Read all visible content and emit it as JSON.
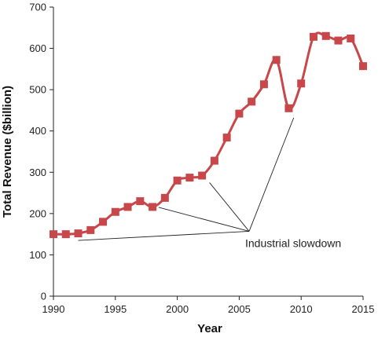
{
  "chart_data": {
    "type": "line",
    "title": "",
    "xlabel": "Year",
    "ylabel": "Total Revenue ($billion)",
    "xlim": [
      1990,
      2015
    ],
    "ylim": [
      0,
      700
    ],
    "x_ticks": [
      "1990",
      "1995",
      "2000",
      "2005",
      "2010",
      "2015"
    ],
    "y_ticks": [
      "0",
      "100",
      "200",
      "300",
      "400",
      "500",
      "600",
      "700"
    ],
    "grid": false,
    "series": [
      {
        "color": "#c8474a",
        "marker": "square",
        "x": [
          1990,
          1991,
          1992,
          1993,
          1994,
          1995,
          1996,
          1997,
          1998,
          1999,
          2000,
          2001,
          2002,
          2003,
          2004,
          2005,
          2006,
          2007,
          2008,
          2009,
          2010,
          2011,
          2012,
          2013,
          2014,
          2015
        ],
        "y": [
          150,
          150,
          152,
          160,
          180,
          204,
          216,
          230,
          216,
          238,
          280,
          287,
          292,
          328,
          384,
          442,
          471,
          513,
          572,
          455,
          515,
          628,
          630,
          619,
          624,
          557
        ]
      }
    ],
    "annotations": [
      {
        "text": "Industrial slowdown",
        "anchor": [
          2005.8,
          157
        ],
        "pointers": [
          [
            1992,
            135
          ],
          [
            1998.5,
            215
          ],
          [
            2002.6,
            275
          ],
          [
            2009.4,
            432
          ]
        ]
      }
    ]
  }
}
